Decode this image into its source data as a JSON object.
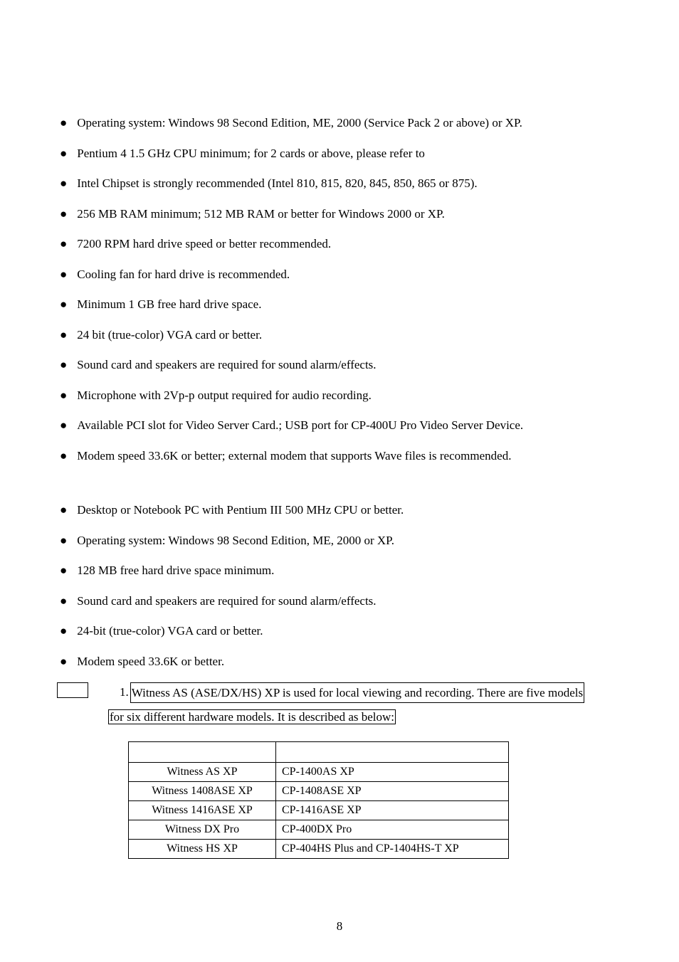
{
  "page_number": "8",
  "section_a": {
    "items": [
      "Operating system: Windows 98 Second Edition, ME, 2000 (Service Pack 2 or above) or XP.",
      "Pentium 4 1.5 GHz CPU minimum; for 2 cards or above, please refer to",
      "Intel Chipset is strongly recommended (Intel 810, 815, 820, 845, 850, 865 or 875).",
      "256 MB RAM minimum; 512 MB RAM or better for Windows 2000 or XP.",
      "7200 RPM hard drive speed or better recommended.",
      "Cooling fan for hard drive is recommended.",
      "Minimum 1 GB free hard drive space.",
      "24 bit (true-color) VGA card or better.",
      "Sound card and speakers are required for sound alarm/effects.",
      "Microphone with 2Vp-p output required for audio recording.",
      "Available PCI slot for Video Server Card.; USB port for CP-400U Pro Video Server Device.",
      "Modem speed 33.6K or better; external modem that supports Wave files is recommended."
    ]
  },
  "section_b": {
    "items": [
      "Desktop or Notebook PC with Pentium III 500 MHz CPU or better.",
      "Operating system: Windows 98 Second Edition, ME, 2000 or XP.",
      "128 MB free hard drive space minimum.",
      "Sound card and speakers are required for sound alarm/effects.",
      "24-bit (true-color) VGA card or better.",
      "Modem speed 33.6K or better."
    ]
  },
  "note": {
    "number": "1.",
    "line1": "Witness AS (ASE/DX/HS) XP is used for local viewing and recording. There are five models",
    "line2": "for six different hardware models. It is described as below:"
  },
  "table": {
    "header": {
      "c1": "",
      "c2": ""
    },
    "rows": [
      {
        "c1": "Witness AS XP",
        "c2": "CP-1400AS XP"
      },
      {
        "c1": "Witness 1408ASE XP",
        "c2": "CP-1408ASE XP"
      },
      {
        "c1": "Witness 1416ASE XP",
        "c2": "CP-1416ASE XP"
      },
      {
        "c1": "Witness DX Pro",
        "c2": "CP-400DX Pro"
      },
      {
        "c1": "Witness HS XP",
        "c2": "CP-404HS Plus and CP-1404HS-T XP"
      }
    ]
  }
}
